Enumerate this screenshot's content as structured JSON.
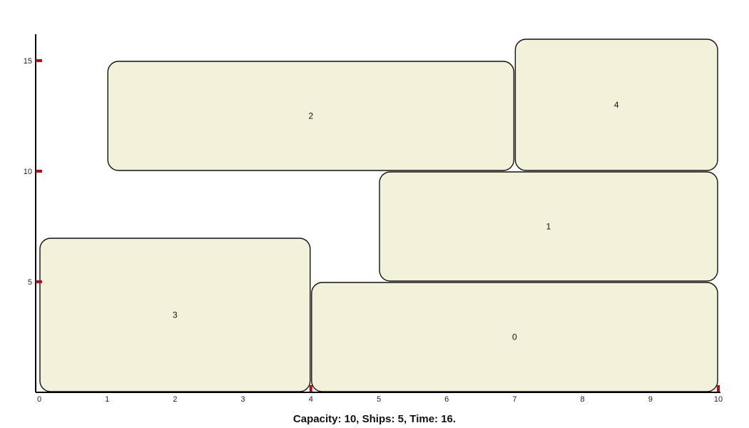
{
  "caption": "Capacity: 10, Ships: 5, Time: 16.",
  "chart_data": {
    "type": "rectangle-packing",
    "xlim": [
      0,
      10
    ],
    "ylim": [
      0,
      16
    ],
    "x_ticks": [
      "0",
      "1",
      "2",
      "3",
      "4",
      "5",
      "6",
      "7",
      "8",
      "9",
      "10"
    ],
    "y_ticks": [
      "5",
      "10",
      "15"
    ],
    "blocks": [
      {
        "label": "0",
        "x0": 4,
        "x1": 10,
        "y0": 0,
        "y1": 5
      },
      {
        "label": "1",
        "x0": 5,
        "x1": 10,
        "y0": 5,
        "y1": 10
      },
      {
        "label": "2",
        "x0": 1,
        "x1": 7,
        "y0": 10,
        "y1": 15
      },
      {
        "label": "3",
        "x0": 0,
        "x1": 4,
        "y0": 0,
        "y1": 7
      },
      {
        "label": "4",
        "x0": 7,
        "x1": 10,
        "y0": 10,
        "y1": 16
      }
    ],
    "colors": {
      "block_fill": "#f2f1da",
      "block_stroke": "#111111",
      "tick_marker": "#b01010",
      "axis": "#000000"
    }
  }
}
